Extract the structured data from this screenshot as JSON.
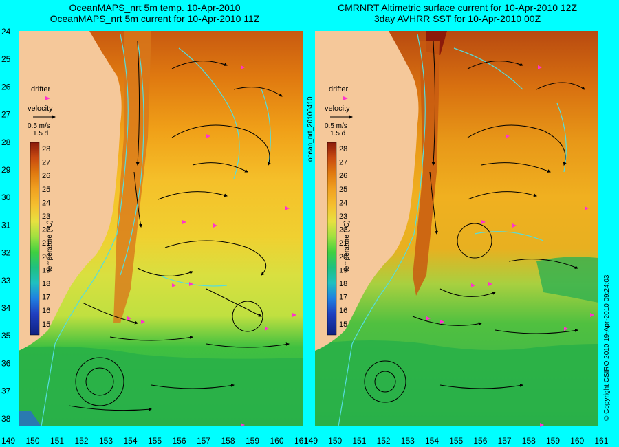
{
  "left_panel": {
    "title_line1": "OceanMAPS_nrt 5m temp. 10-Apr-2010",
    "title_line2": "OceanMAPS_nrt 5m current for 10-Apr-2010 11Z"
  },
  "right_panel": {
    "title_line1": "CMRNRT Altimetric surface current for 10-Apr-2010 12Z",
    "title_line2": "3day AVHRR SST for 10-Apr-2010 00Z"
  },
  "center_label": "ocean_nrt_20100410",
  "right_label": "© Copyright CSIRO 2010   19-Apr-2010 09:24:03",
  "legend": {
    "drifter_label": "drifter",
    "velocity_label": "velocity",
    "scale_line1": "0.5 m/s",
    "scale_line2": "1.5 d",
    "temp_label": "temperature (°C)",
    "temp_ticks": [
      "28",
      "27",
      "26",
      "25",
      "24",
      "23",
      "22",
      "21",
      "20",
      "19",
      "18",
      "17",
      "16",
      "15"
    ]
  },
  "axes": {
    "lat_ticks": [
      "24",
      "25",
      "26",
      "27",
      "28",
      "29",
      "30",
      "31",
      "32",
      "33",
      "34",
      "35",
      "36",
      "37",
      "38"
    ],
    "lon_ticks": [
      "149",
      "150",
      "151",
      "152",
      "153",
      "154",
      "155",
      "156",
      "157",
      "158",
      "159",
      "160",
      "161"
    ]
  },
  "colors": {
    "land": "#f5c89a",
    "frame": "#00ffff",
    "drifter": "#ff33cc",
    "contour": "#55dddd"
  }
}
